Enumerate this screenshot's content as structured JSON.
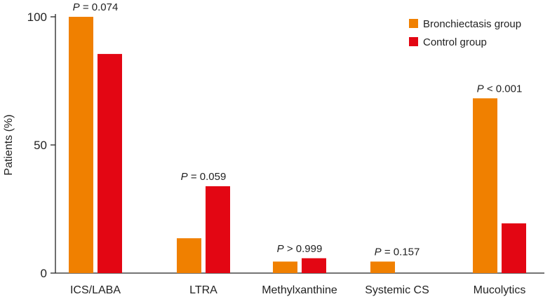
{
  "chart_data": {
    "type": "bar",
    "title": "",
    "xlabel": "",
    "ylabel": "Patients (%)",
    "ylim": [
      0,
      100
    ],
    "yticks": [
      0,
      50,
      100
    ],
    "grid": false,
    "legend_position": "top-right",
    "categories": [
      "ICS/LABA",
      "LTRA",
      "Methylxanthine",
      "Systemic CS",
      "Mucolytics"
    ],
    "series": [
      {
        "name": "Bronchiectasis group",
        "color": "#F08000",
        "values": [
          100,
          13.6,
          4.5,
          4.5,
          68.2
        ]
      },
      {
        "name": "Control group",
        "color": "#E30613",
        "values": [
          85.5,
          33.9,
          5.8,
          0,
          19.4
        ]
      }
    ],
    "annotations": [
      {
        "category": "ICS/LABA",
        "p_symbol": "P",
        "p_text": "= 0.074"
      },
      {
        "category": "LTRA",
        "p_symbol": "P",
        "p_text": "= 0.059"
      },
      {
        "category": "Methylxanthine",
        "p_symbol": "P",
        "p_text": "> 0.999"
      },
      {
        "category": "Systemic CS",
        "p_symbol": "P",
        "p_text": "= 0.157"
      },
      {
        "category": "Mucolytics",
        "p_symbol": "P",
        "p_text": "< 0.001"
      }
    ]
  }
}
